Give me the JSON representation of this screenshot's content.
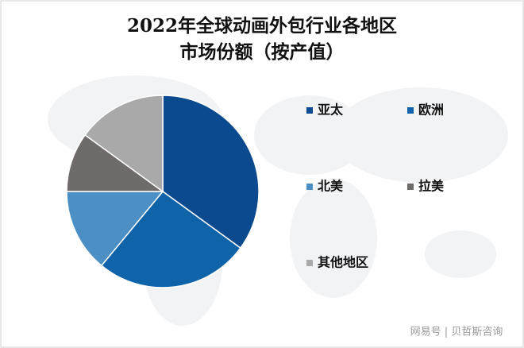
{
  "chart_data": {
    "type": "pie",
    "title": [
      "2022年全球动画外包行业各地区",
      "市场份额（按产值）"
    ],
    "categories": [
      "亚太",
      "欧洲",
      "北美",
      "拉美",
      "其他地区"
    ],
    "values": [
      35,
      26,
      14,
      10,
      15
    ],
    "colors": [
      "#0b4a8e",
      "#0f63a9",
      "#4b8fc5",
      "#6f6b6b",
      "#a9a9a9"
    ],
    "legend": "right"
  },
  "watermark": "网易号 | 贝哲斯咨询"
}
